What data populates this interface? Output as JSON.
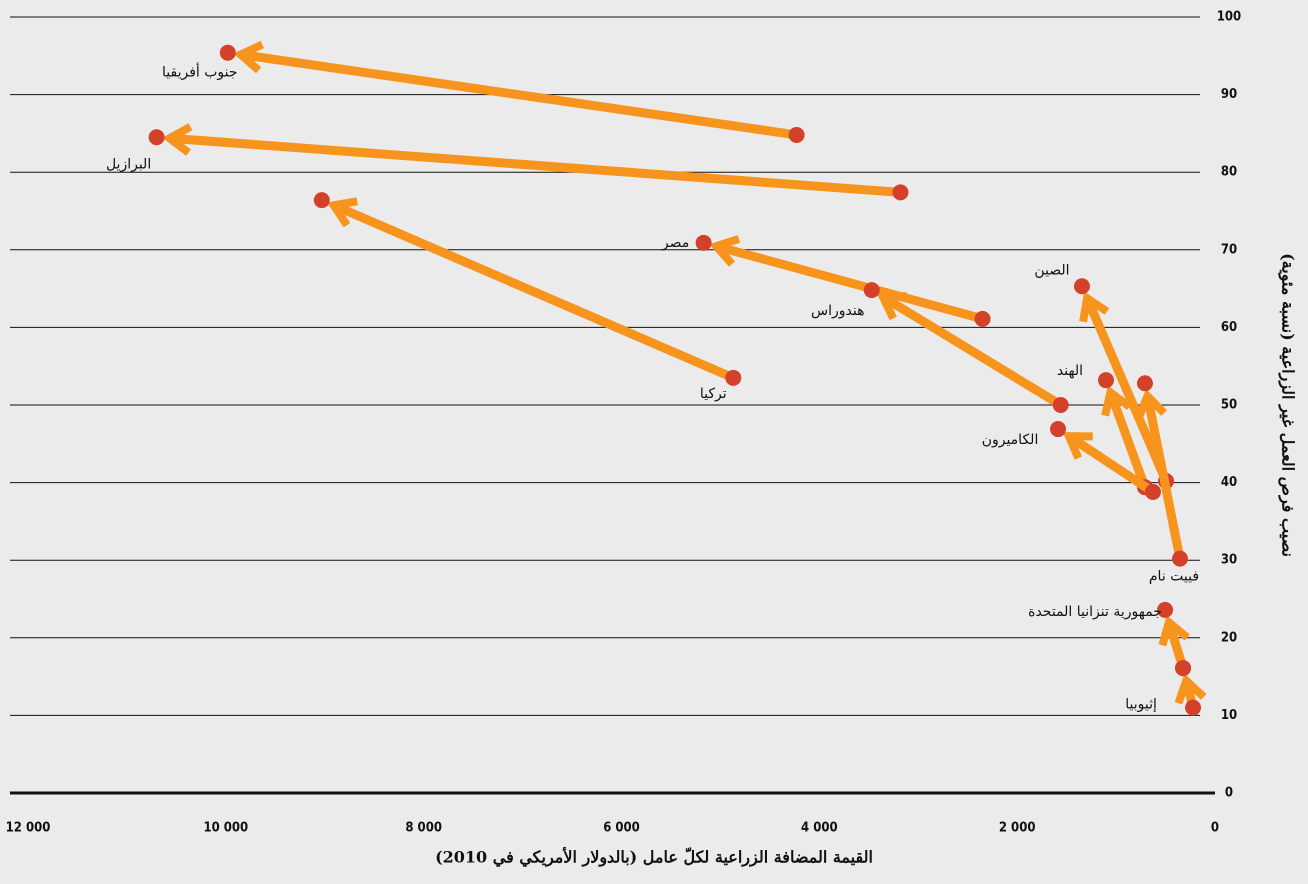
{
  "chart_data": {
    "type": "arrow",
    "xlabel": "القيمة المضافة الزراعية لكلّ عامل (بالدولار الأمريكي في 2010)",
    "ylabel": "نصيب فرص العمل غير الزراعية (نسبة مئوية)",
    "xlim": [
      12000,
      0
    ],
    "xticks": [
      {
        "value": 12000,
        "label": "12 000"
      },
      {
        "value": 10000,
        "label": "10 000"
      },
      {
        "value": 8000,
        "label": "8 000"
      },
      {
        "value": 6000,
        "label": "6 000"
      },
      {
        "value": 4000,
        "label": "4 000"
      },
      {
        "value": 2000,
        "label": "2 000"
      },
      0
    ],
    "ylim": [
      0,
      100
    ],
    "yticks": [
      0,
      10,
      20,
      30,
      40,
      50,
      60,
      70,
      80,
      90,
      100
    ],
    "grid": true,
    "line_color": "#f7941d",
    "dot_color": "#d4412a",
    "series": [
      {
        "name": "جنوب أفريقيا",
        "x": [
          4230,
          9980
        ],
        "y": [
          84.8,
          95.4
        ]
      },
      {
        "name": "البرازيل",
        "x": [
          3180,
          10700
        ],
        "y": [
          77.4,
          84.5
        ]
      },
      {
        "name": "تركيا",
        "x": [
          4870,
          9030
        ],
        "y": [
          53.5,
          76.4
        ]
      },
      {
        "name": "مصر",
        "x": [
          2350,
          5170
        ],
        "y": [
          61.1,
          70.9
        ]
      },
      {
        "name": "هندوراس",
        "x": [
          1560,
          3470
        ],
        "y": [
          50.0,
          64.8
        ]
      },
      {
        "name": "الصين",
        "x": [
          495,
          1345
        ],
        "y": [
          40.2,
          65.3
        ]
      },
      {
        "name": "الهند",
        "x": [
          708,
          1102
        ],
        "y": [
          39.4,
          53.2
        ]
      },
      {
        "name": "الكاميرون",
        "x": [
          627,
          1587
        ],
        "y": [
          38.8,
          46.9
        ]
      },
      {
        "name": "فييت نام",
        "x": [
          354,
          708
        ],
        "y": [
          30.2,
          52.8
        ]
      },
      {
        "name": "جمهورية تنزانيا المتحدة",
        "x": [
          323,
          505
        ],
        "y": [
          16.1,
          23.6
        ]
      },
      {
        "name": "إثيوبيا",
        "x": [
          222,
          323
        ],
        "y": [
          11.0,
          16.1
        ]
      }
    ]
  }
}
